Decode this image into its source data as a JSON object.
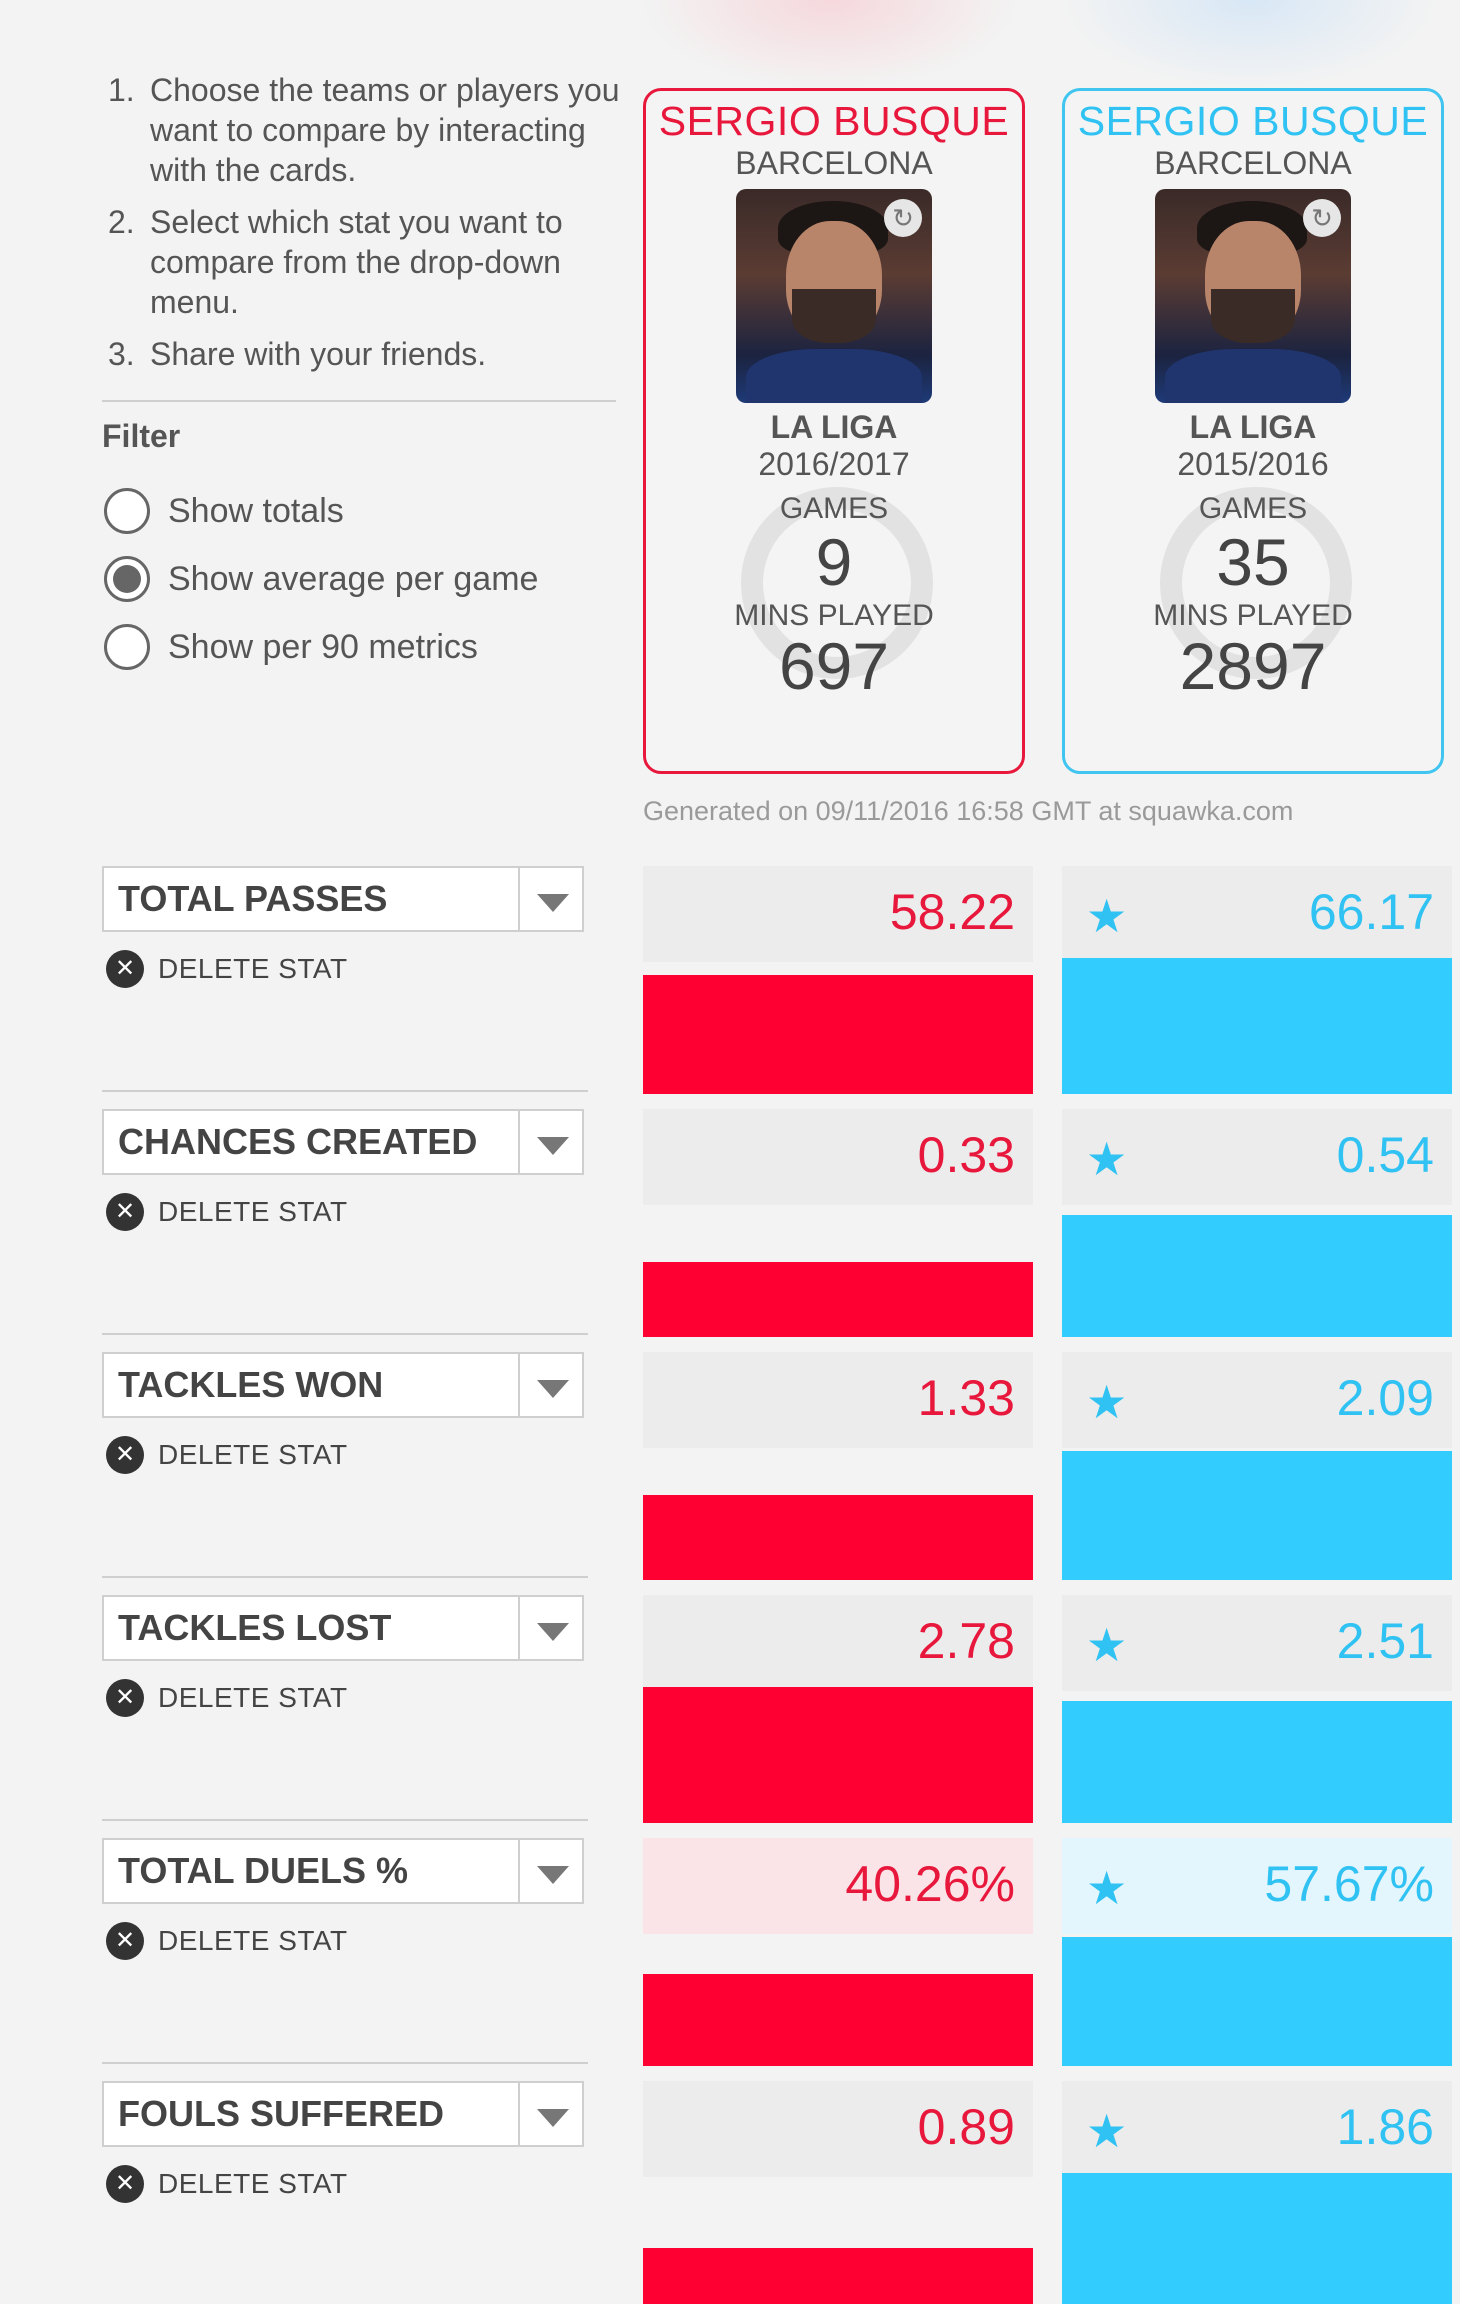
{
  "instructions": [
    {
      "num": "1.",
      "text": "Choose the teams or players you want to compare by interacting with the cards."
    },
    {
      "num": "2.",
      "text": "Select which stat you want to compare from the drop-down menu."
    },
    {
      "num": "3.",
      "text": "Share with your friends."
    }
  ],
  "filter": {
    "title": "Filter",
    "options": [
      {
        "label": "Show totals",
        "checked": false
      },
      {
        "label": "Show average per game",
        "checked": true
      },
      {
        "label": "Show per 90 metrics",
        "checked": false
      }
    ]
  },
  "players": [
    {
      "name": "SERGIO BUSQUE",
      "club": "BARCELONA",
      "league": "LA LIGA",
      "season": "2016/2017",
      "games_label": "GAMES",
      "games": "9",
      "mins_label": "MINS PLAYED",
      "mins": "697",
      "color": "#e8183c"
    },
    {
      "name": "SERGIO BUSQUE",
      "club": "BARCELONA",
      "league": "LA LIGA",
      "season": "2015/2016",
      "games_label": "GAMES",
      "games": "35",
      "mins_label": "MINS PLAYED",
      "mins": "2897",
      "color": "#2fc2f2"
    }
  ],
  "generated": "Generated on 09/11/2016 16:58 GMT at squawka.com",
  "delete_label": "DELETE STAT",
  "stats": [
    {
      "label": "TOTAL PASSES",
      "left": "58.22",
      "right": "66.17",
      "left_fill": 0.35,
      "right_fill": 0.4,
      "winner": "right",
      "highlight": false
    },
    {
      "label": "CHANCES CREATED",
      "left": "0.33",
      "right": "0.54",
      "left_fill": 0.22,
      "right_fill": 0.36,
      "winner": "right",
      "highlight": false
    },
    {
      "label": "TACKLES WON",
      "left": "1.33",
      "right": "2.09",
      "left_fill": 0.25,
      "right_fill": 0.38,
      "winner": "right",
      "highlight": false
    },
    {
      "label": "TACKLES LOST",
      "left": "2.78",
      "right": "2.51",
      "left_fill": 0.4,
      "right_fill": 0.36,
      "winner": "right",
      "highlight": false
    },
    {
      "label": "TOTAL DUELS %",
      "left": "40.26%",
      "right": "57.67%",
      "left_fill": 0.27,
      "right_fill": 0.38,
      "winner": "right",
      "highlight": true
    },
    {
      "label": "FOULS SUFFERED",
      "left": "0.89",
      "right": "1.86",
      "left_fill": 0.18,
      "right_fill": 0.4,
      "winner": "right",
      "highlight": false
    }
  ]
}
